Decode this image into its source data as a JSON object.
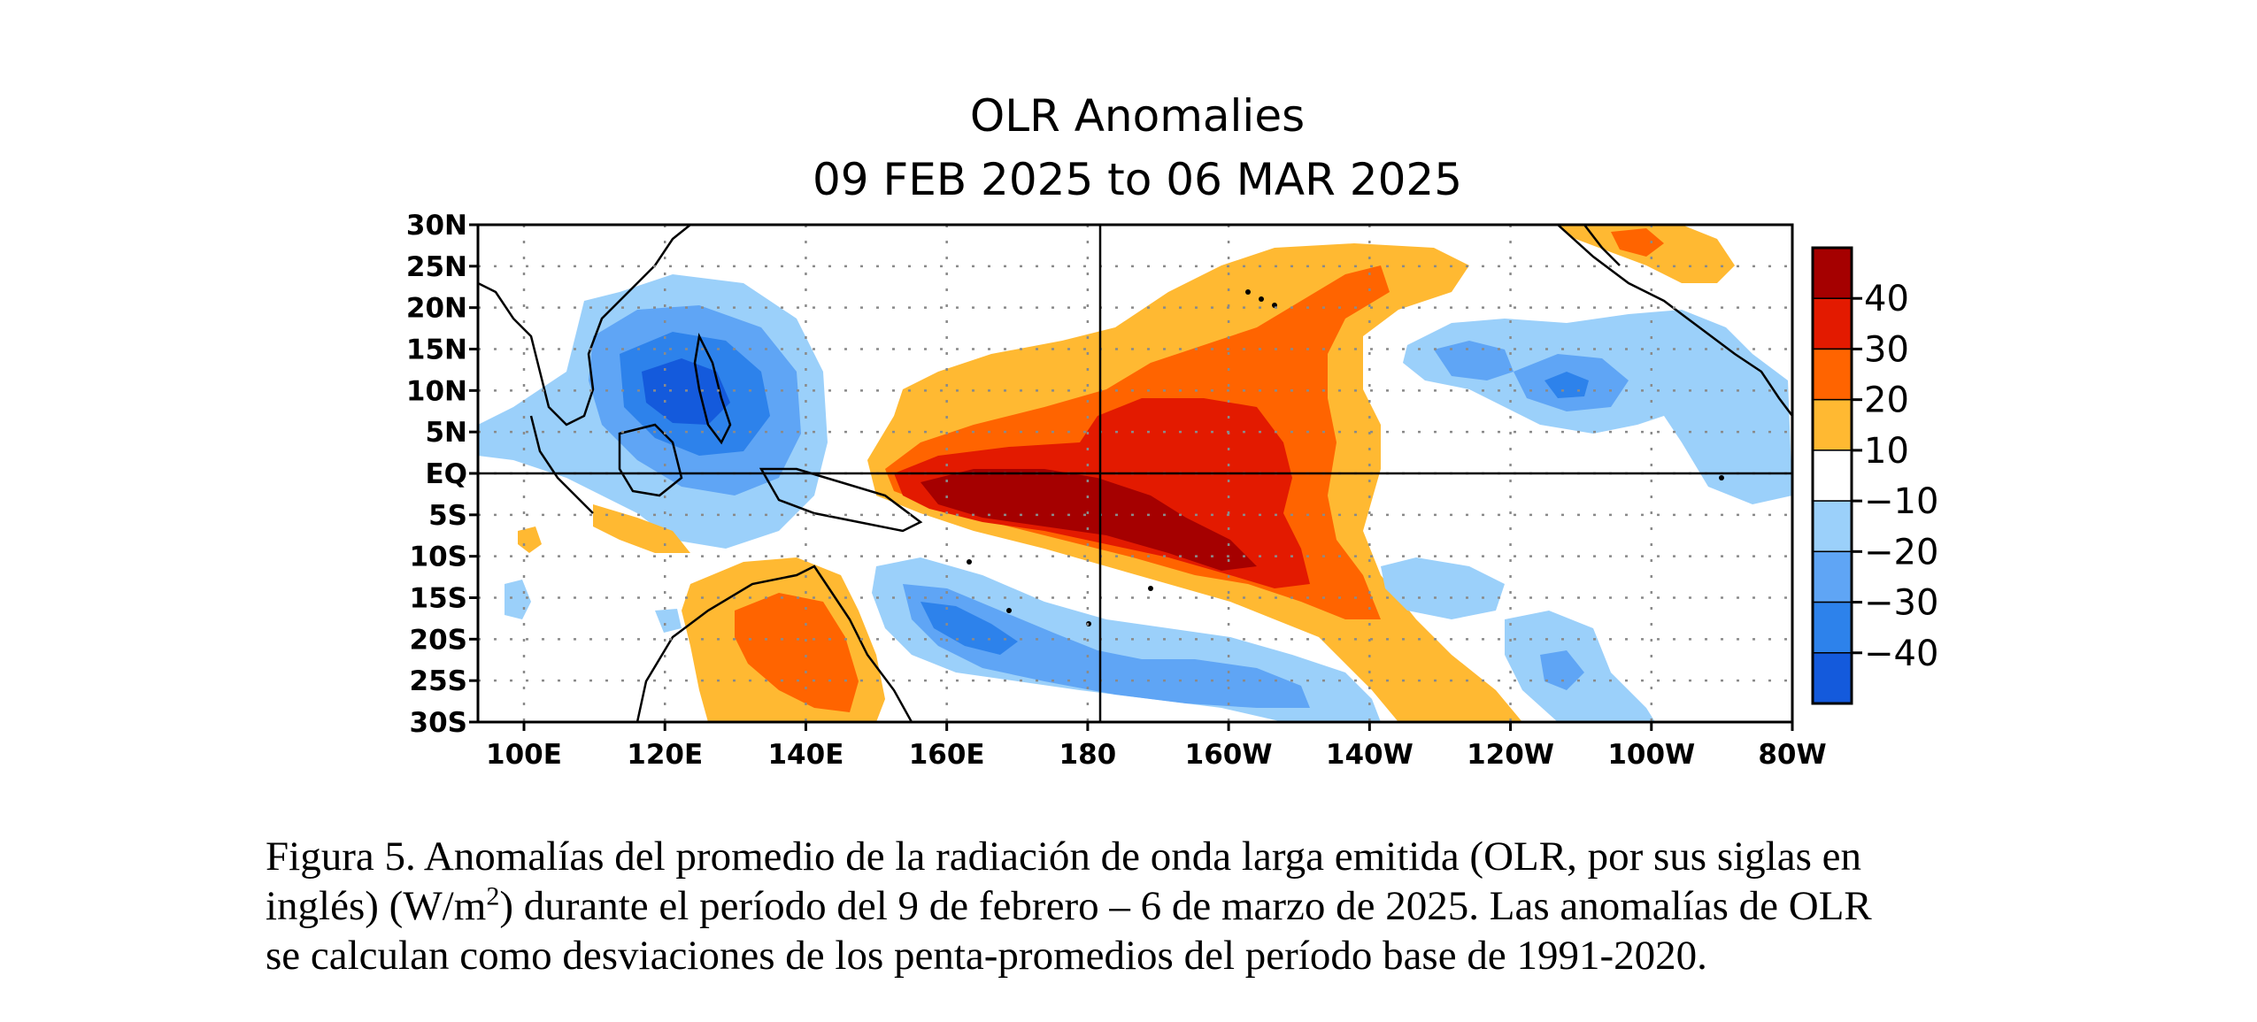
{
  "map": {
    "title_line1": "OLR Anomalies",
    "title_line2": "09 FEB 2025 to 06 MAR 2025",
    "lat_labels": [
      "30N",
      "25N",
      "20N",
      "15N",
      "10N",
      "5N",
      "EQ",
      "5S",
      "10S",
      "15S",
      "20S",
      "25S",
      "30S"
    ],
    "lon_labels": [
      "100E",
      "120E",
      "140E",
      "160E",
      "180",
      "160W",
      "140W",
      "120W",
      "100W",
      "80W"
    ],
    "colorbar": {
      "tick_labels": [
        "40",
        "30",
        "20",
        "10",
        "−10",
        "−20",
        "−30",
        "−40"
      ],
      "colors": [
        "#a50000",
        "#e31a00",
        "#ff6400",
        "#ffb932",
        "#ffffff",
        "#9bd0fa",
        "#5fa5f5",
        "#2d82eb",
        "#145adc"
      ]
    },
    "palette": {
      "pos1": "#ffb932",
      "pos2": "#ff6400",
      "pos3": "#e31a00",
      "pos4": "#a50000",
      "neg1": "#9bd0fa",
      "neg2": "#5fa5f5",
      "neg3": "#2d82eb",
      "neg4": "#145adc"
    }
  },
  "caption": {
    "line1": "Figura 5. Anomalías del promedio de la radiación de onda larga emitida (OLR, por sus siglas en",
    "line2a": "inglés) (W/m",
    "line2sup": "2",
    "line2b": ") durante el período del 9 de febrero – 6 de marzo de 2025.  Las anomalías de OLR",
    "line3": "se calculan como desviaciones de los penta-promedios del período base de 1991-2020."
  }
}
